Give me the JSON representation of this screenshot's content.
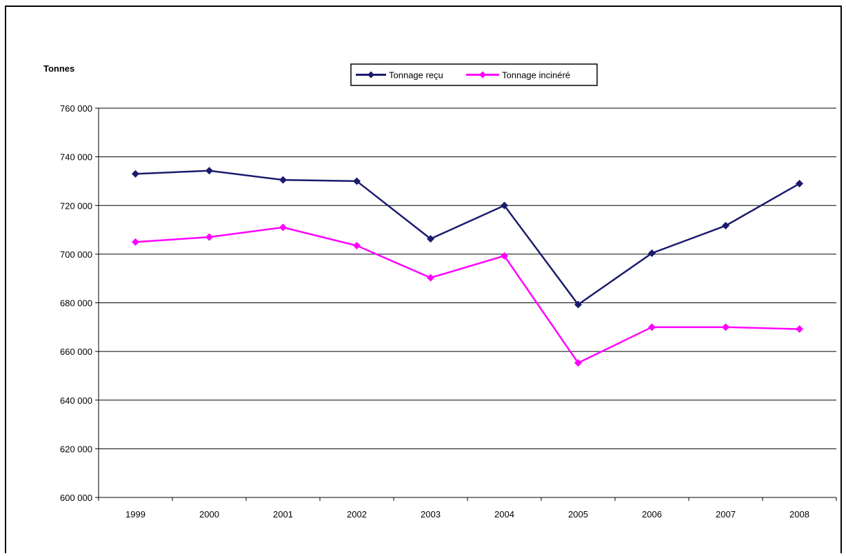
{
  "chart_data": {
    "type": "line",
    "ylabel": "Tonnes",
    "categories": [
      "1999",
      "2000",
      "2001",
      "2002",
      "2003",
      "2004",
      "2005",
      "2006",
      "2007",
      "2008"
    ],
    "ylim": [
      600000,
      760000
    ],
    "yticks": [
      600000,
      620000,
      640000,
      660000,
      680000,
      700000,
      720000,
      740000,
      760000
    ],
    "ytick_labels": [
      "600 000",
      "620 000",
      "640 000",
      "660 000",
      "680 000",
      "700 000",
      "720 000",
      "740 000",
      "760 000"
    ],
    "grid": "horizontal",
    "legend_position": "top-center",
    "series": [
      {
        "name": "Tonnage reçu",
        "color": "#1a1a6e",
        "values": [
          733000,
          734300,
          730500,
          730000,
          706300,
          720000,
          679300,
          700400,
          711700,
          729000
        ]
      },
      {
        "name": "Tonnage incinéré",
        "color": "#ff00ff",
        "values": [
          705000,
          707000,
          711000,
          703500,
          690300,
          699300,
          655300,
          670000,
          670000,
          669200
        ]
      }
    ]
  }
}
